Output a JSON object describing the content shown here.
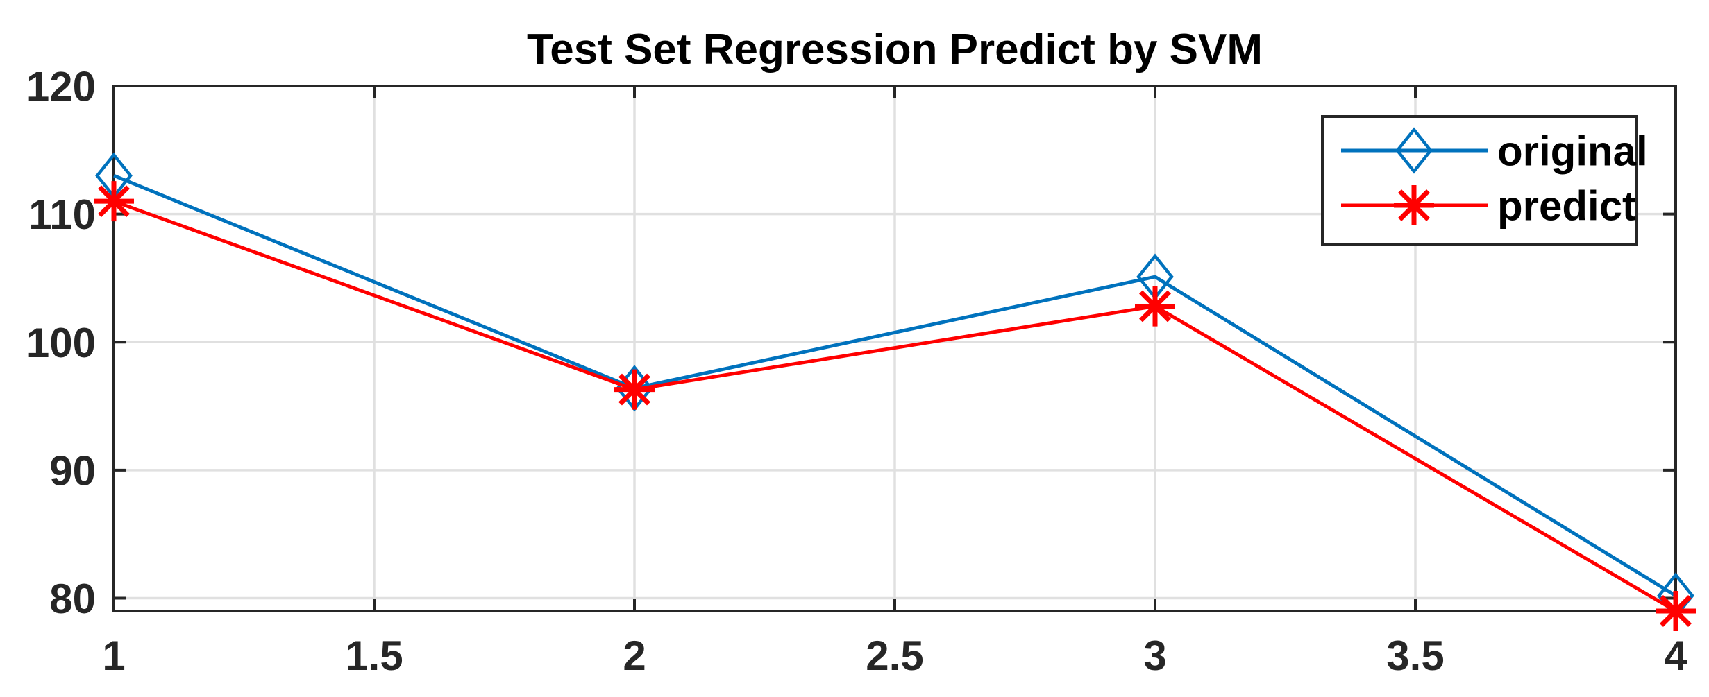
{
  "chart_data": {
    "type": "line",
    "title": "Test Set Regression Predict by SVM",
    "x": [
      1,
      2,
      3,
      4
    ],
    "series": [
      {
        "name": "original",
        "color": "#0072BD",
        "marker": "diamond",
        "values": [
          113.0,
          96.4,
          105.1,
          80.2
        ]
      },
      {
        "name": "predict",
        "color": "#FF0000",
        "marker": "asterisk",
        "values": [
          111.0,
          96.3,
          102.8,
          79.0
        ]
      }
    ],
    "xlim": [
      1,
      4
    ],
    "ylim": [
      79,
      120
    ],
    "x_ticks": [
      1,
      1.5,
      2,
      2.5,
      3,
      3.5,
      4
    ],
    "x_tick_labels": [
      "1",
      "1.5",
      "2",
      "2.5",
      "3",
      "3.5",
      "4"
    ],
    "y_ticks": [
      80,
      90,
      100,
      110,
      120
    ],
    "y_tick_labels": [
      "80",
      "90",
      "100",
      "110",
      "120"
    ],
    "grid": true,
    "legend_position": "top-right",
    "colors": {
      "axis": "#262626",
      "grid": "#e0e0e0",
      "background": "#ffffff",
      "title": "#000000"
    }
  }
}
